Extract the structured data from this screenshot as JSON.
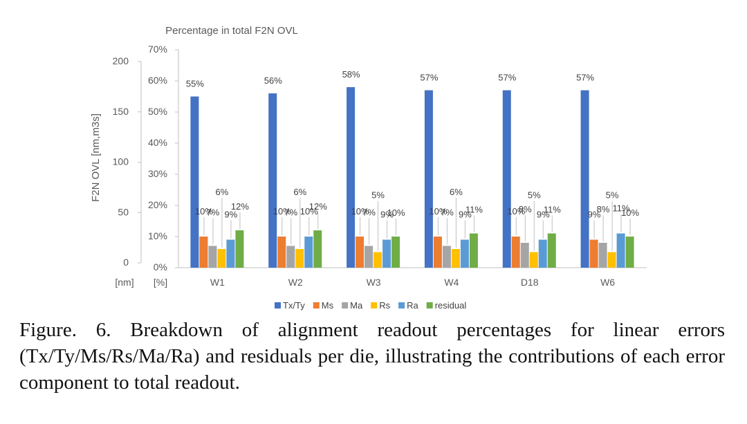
{
  "figure": {
    "caption": "Figure. 6. Breakdown of alignment readout percentages for linear errors (Tx/Ty/Ms/Rs/Ma/Ra) and residuals per die, illustrating the contributions of each error component to total readout."
  },
  "chart_data": {
    "type": "bar",
    "title": "Percentage in total F2N OVL",
    "ylabel": "F2N OVL [nm,m3s]",
    "y_left_unit": "[nm]",
    "y_right_unit": "[%]",
    "y_nm_ticks": [
      "0",
      "50",
      "100",
      "150",
      "200"
    ],
    "y_pct_ticks": [
      "0%",
      "10%",
      "20%",
      "30%",
      "40%",
      "50%",
      "60%",
      "70%"
    ],
    "ylim_nm": [
      0,
      200
    ],
    "ylim_pct": [
      0,
      70
    ],
    "grid": false,
    "legend_position": "bottom",
    "categories": [
      "W1",
      "W2",
      "W3",
      "W4",
      "D18",
      "W6"
    ],
    "series": [
      {
        "name": "Tx/Ty",
        "color": "#4472C4",
        "values": [
          55,
          56,
          58,
          57,
          57,
          57
        ],
        "labels": [
          "55%",
          "56%",
          "58%",
          "57%",
          "57%",
          "57%"
        ]
      },
      {
        "name": "Ms",
        "color": "#ED7D31",
        "values": [
          10,
          10,
          10,
          10,
          10,
          9
        ],
        "labels": [
          "10%",
          "10%",
          "10%",
          "10%",
          "10%",
          "9%"
        ]
      },
      {
        "name": "Ma",
        "color": "#A5A5A5",
        "values": [
          7,
          7,
          7,
          7,
          8,
          8
        ],
        "labels": [
          "7%",
          "7%",
          "7%",
          "7%",
          "8%",
          "8%"
        ]
      },
      {
        "name": "Rs",
        "color": "#FFC000",
        "values": [
          6,
          6,
          5,
          6,
          5,
          5
        ],
        "labels": [
          "6%",
          "6%",
          "5%",
          "6%",
          "5%",
          "5%"
        ]
      },
      {
        "name": "Ra",
        "color": "#5B9BD5",
        "values": [
          9,
          10,
          9,
          9,
          9,
          11
        ],
        "labels": [
          "9%",
          "10%",
          "9%",
          "9%",
          "9%",
          "11%"
        ]
      },
      {
        "name": "residual",
        "color": "#70AD47",
        "values": [
          12,
          12,
          10,
          11,
          11,
          10
        ],
        "labels": [
          "12%",
          "12%",
          "10%",
          "11%",
          "11%",
          "10%"
        ]
      }
    ]
  }
}
